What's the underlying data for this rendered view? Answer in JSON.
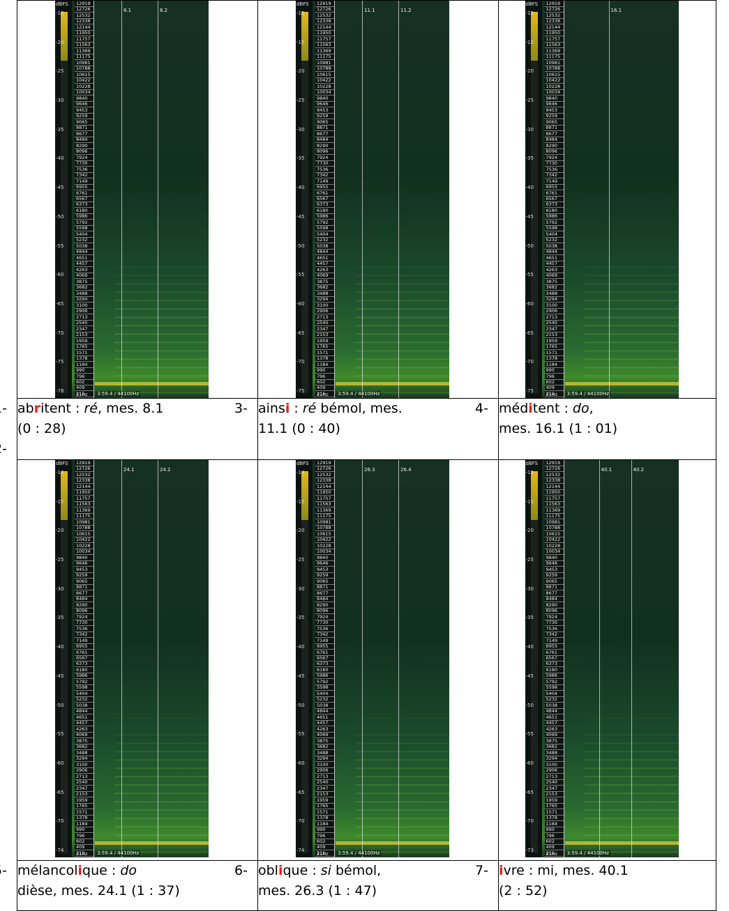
{
  "spectrogram_common": {
    "dbfs_label": "dBFS",
    "time_label": "3:59.4 / 44100Hz",
    "freq_bottom_label": "21Hz",
    "freq_labels": [
      "12919",
      "12726",
      "12532",
      "12338",
      "12144",
      "11950",
      "11757",
      "11563",
      "11369",
      "11175",
      "10981",
      "10788",
      "10615",
      "10422",
      "10228",
      "10034",
      "9840",
      "9646",
      "9453",
      "9259",
      "9065",
      "8871",
      "8677",
      "8484",
      "8290",
      "8096",
      "7924",
      "7730",
      "7536",
      "7342",
      "7149",
      "6955",
      "6761",
      "6567",
      "6373",
      "6180",
      "5986",
      "5792",
      "5598",
      "5404",
      "5232",
      "5038",
      "4844",
      "4651",
      "4457",
      "4263",
      "4069",
      "3875",
      "3682",
      "3488",
      "3294",
      "3100",
      "2906",
      "2713",
      "2540",
      "2347",
      "2153",
      "1959",
      "1765",
      "1571",
      "1378",
      "1184",
      "990",
      "796",
      "602",
      "409",
      "215"
    ]
  },
  "cells": [
    {
      "db_ticks": [
        "-18",
        "-20",
        "-25",
        "-30",
        "-35",
        "-40",
        "-45",
        "-50",
        "-55",
        "-60",
        "-65",
        "-70",
        "-75",
        "-78"
      ],
      "markers": [
        {
          "label": "8.1"
        },
        {
          "label": "8.2"
        }
      ],
      "caption_lines": [
        {
          "num": "1-",
          "pre": "ab",
          "hl": "r",
          "mid": "i",
          "post": "tent : ",
          "it": "ré",
          "rest": ", mes. 8.1"
        },
        {
          "plain": "(0 : 28)"
        },
        {
          "num2": "2-"
        }
      ]
    },
    {
      "db_ticks": [
        "-15",
        "-15",
        "-20",
        "-25",
        "-30",
        "-35",
        "-40",
        "-45",
        "-50",
        "-55",
        "-60",
        "-65",
        "-70",
        "-75"
      ],
      "markers": [
        {
          "label": "11.1"
        },
        {
          "label": "11.2"
        }
      ],
      "caption_lines": [
        {
          "num": "3-",
          "pre": "ains",
          "hl": "i",
          "post": " : ",
          "it": "ré",
          "rest": " bémol, mes."
        },
        {
          "plain": "11.1 (0 : 40)"
        }
      ]
    },
    {
      "db_ticks": [
        "-15",
        "-15",
        "-20",
        "-25",
        "-30",
        "-35",
        "-40",
        "-45",
        "-50",
        "-55",
        "-60",
        "-65",
        "-70",
        "-75"
      ],
      "markers": [
        {
          "label": "16.1"
        }
      ],
      "caption_lines": [
        {
          "num": "4-",
          "pre": "méd",
          "hl": "i",
          "post": "tent : ",
          "it": "do",
          "rest": ","
        },
        {
          "plain": "mes. 16.1 (1 : 01)"
        }
      ]
    },
    {
      "db_ticks": [
        "-14",
        "-15",
        "-20",
        "-25",
        "-30",
        "-35",
        "-40",
        "-45",
        "-50",
        "-55",
        "-60",
        "-65",
        "-70",
        "-74"
      ],
      "markers": [
        {
          "label": "24.1"
        },
        {
          "label": "24.2"
        }
      ],
      "caption_lines": [
        {
          "num": "5-",
          "pre": "mélancol",
          "hl": "i",
          "post": "que : ",
          "it": "do",
          "rest": ""
        },
        {
          "plain": "dièse, mes. 24.1 (1 : 37)"
        }
      ]
    },
    {
      "db_ticks": [
        "-14",
        "-15",
        "-20",
        "-25",
        "-30",
        "-35",
        "-40",
        "-45",
        "-50",
        "-55",
        "-60",
        "-65",
        "-70",
        "-74"
      ],
      "markers": [
        {
          "label": "26.3"
        },
        {
          "label": "26.4"
        }
      ],
      "caption_lines": [
        {
          "num": "6-",
          "pre": "obl",
          "hl": "i",
          "post": "que : ",
          "it": "si",
          "rest": " bémol,"
        },
        {
          "plain": "mes. 26.3 (1 : 47)"
        }
      ]
    },
    {
      "db_ticks": [
        "-13",
        "-15",
        "-20",
        "-25",
        "-30",
        "-35",
        "-40",
        "-45",
        "-50",
        "-55",
        "-60",
        "-65",
        "-70",
        "-73"
      ],
      "markers": [
        {
          "label": "40.1"
        },
        {
          "label": "40.2"
        }
      ],
      "caption_lines": [
        {
          "num": "7-",
          "pre": "",
          "hl": "i",
          "post": "vre : mi, mes. 40.1",
          "it": "",
          "rest": ""
        },
        {
          "plain": "(2 : 52)"
        }
      ]
    }
  ]
}
